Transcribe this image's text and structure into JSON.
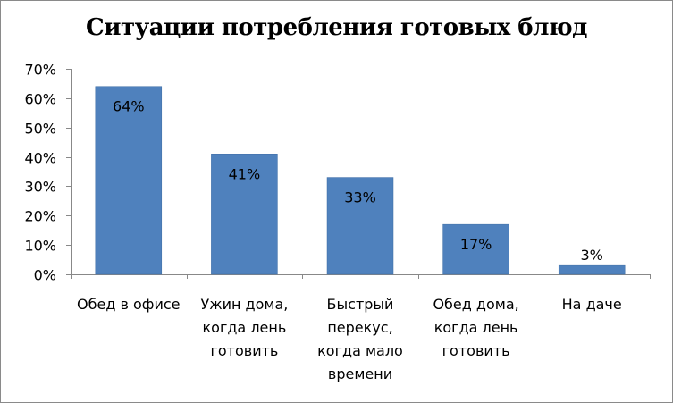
{
  "chart_data": {
    "type": "bar",
    "title": "Ситуации потребления готовых блюд",
    "categories": [
      [
        "Обед в офисе"
      ],
      [
        "Ужин дома,",
        "когда лень",
        "готовить"
      ],
      [
        "Быстрый",
        "перекус,",
        "когда мало",
        "времени"
      ],
      [
        "Обед дома,",
        "когда лень",
        "готовить"
      ],
      [
        "На даче"
      ]
    ],
    "values": [
      64,
      41,
      33,
      17,
      3
    ],
    "data_labels": [
      "64%",
      "41%",
      "33%",
      "17%",
      "3%"
    ],
    "y_ticks": [
      "0%",
      "10%",
      "20%",
      "30%",
      "40%",
      "50%",
      "60%",
      "70%"
    ],
    "ylim": [
      0,
      70
    ],
    "grid": false,
    "legend": "none",
    "bar_color": "#4f81bd",
    "bar_edge_color": "#3a6aa3"
  }
}
